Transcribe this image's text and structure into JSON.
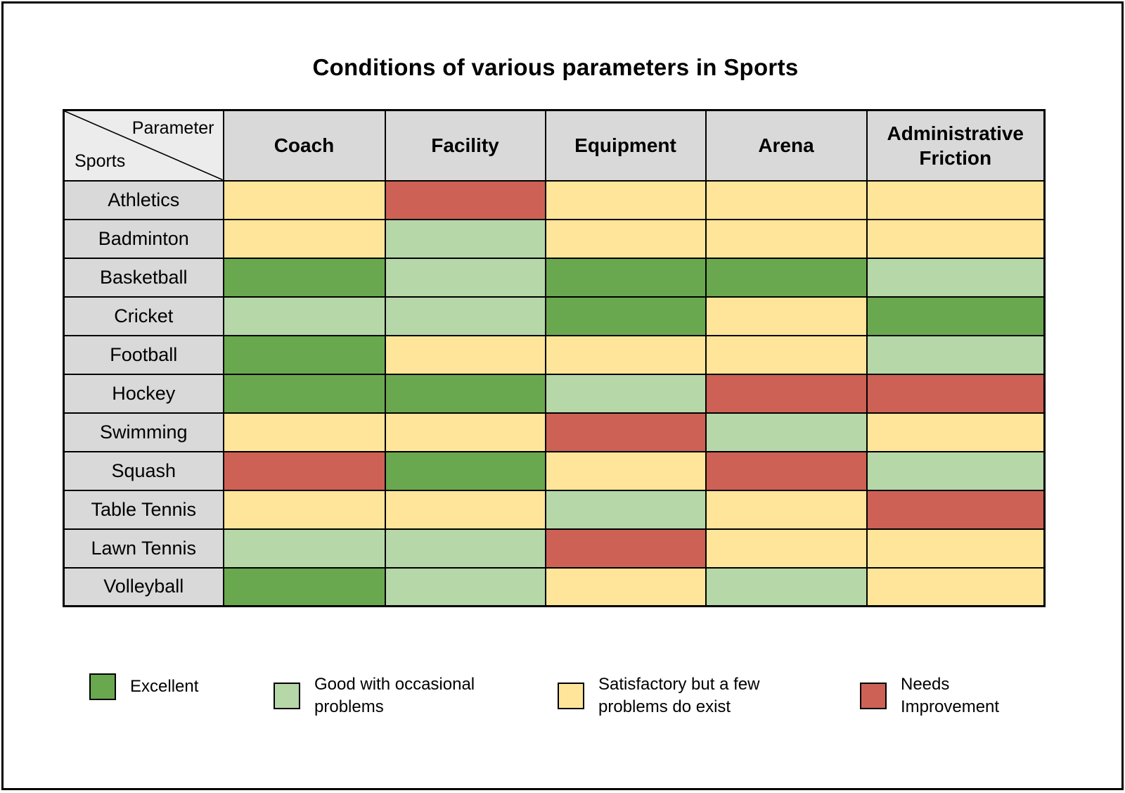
{
  "corner": {
    "top": "Parameter",
    "bottom": "Sports"
  },
  "chart_data": {
    "type": "heatmap",
    "title": "Conditions of various parameters in Sports",
    "columns": [
      "Coach",
      "Facility",
      "Equipment",
      "Arena",
      "Administrative Friction"
    ],
    "rows": [
      "Athletics",
      "Badminton",
      "Basketball",
      "Cricket",
      "Football",
      "Hockey",
      "Swimming",
      "Squash",
      "Table Tennis",
      "Lawn Tennis",
      "Volleyball"
    ],
    "levels": {
      "E": {
        "label": "Excellent",
        "color": "#6aa84f"
      },
      "G": {
        "label": "Good with occasional problems",
        "color": "#b6d7a8"
      },
      "S": {
        "label": "Satisfactory but a few problems do exist",
        "color": "#ffe59a"
      },
      "N": {
        "label": "Needs Improvement",
        "color": "#cd6155"
      }
    },
    "legend_order": [
      "E",
      "G",
      "S",
      "N"
    ],
    "values": [
      [
        "S",
        "N",
        "S",
        "S",
        "S"
      ],
      [
        "S",
        "G",
        "S",
        "S",
        "S"
      ],
      [
        "E",
        "G",
        "E",
        "E",
        "G"
      ],
      [
        "G",
        "G",
        "E",
        "S",
        "E"
      ],
      [
        "E",
        "S",
        "S",
        "S",
        "G"
      ],
      [
        "E",
        "E",
        "G",
        "N",
        "N"
      ],
      [
        "S",
        "S",
        "N",
        "G",
        "S"
      ],
      [
        "N",
        "E",
        "S",
        "N",
        "G"
      ],
      [
        "S",
        "S",
        "G",
        "S",
        "N"
      ],
      [
        "G",
        "G",
        "N",
        "S",
        "S"
      ],
      [
        "E",
        "G",
        "S",
        "G",
        "S"
      ]
    ]
  },
  "ui_colors": {
    "header_bg": "#d9d9d9",
    "row_label_bg": "#d9d9d9",
    "corner_bg": "#ececec",
    "grid_line": "#000000",
    "page_bg": "#ffffff"
  }
}
